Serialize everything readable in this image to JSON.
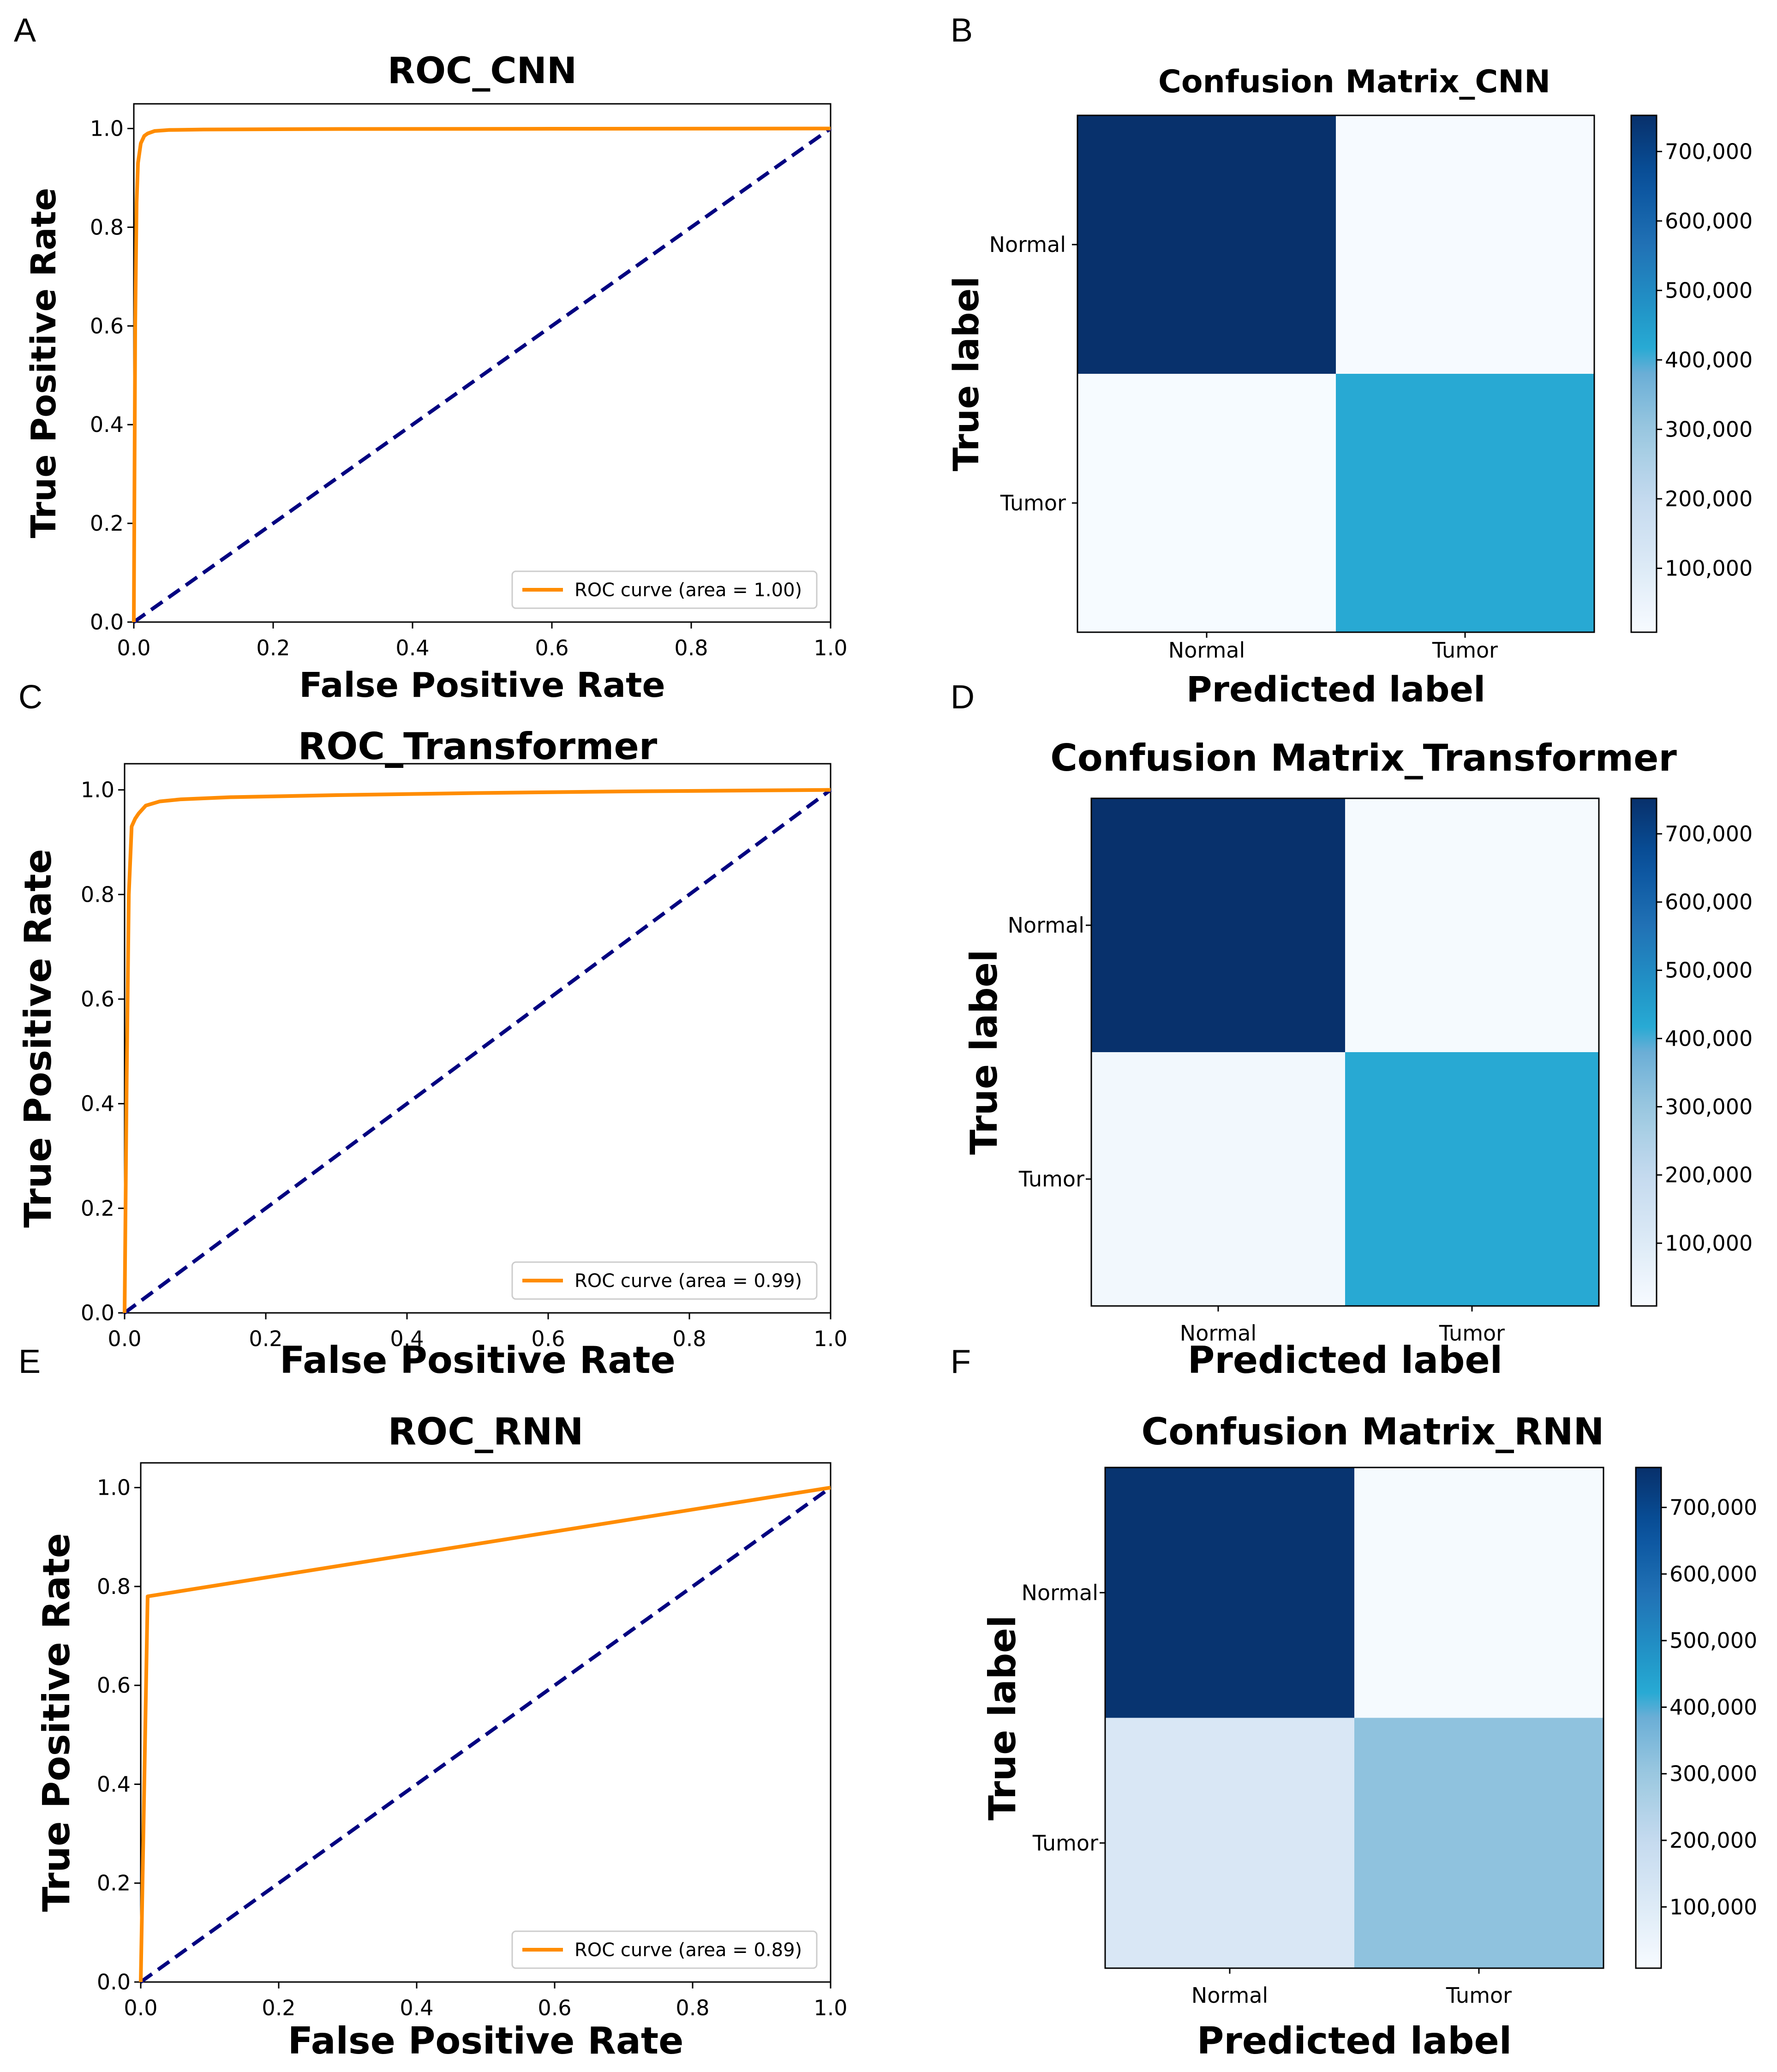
{
  "panels": [
    {
      "letter": "A"
    },
    {
      "letter": "B"
    },
    {
      "letter": "C"
    },
    {
      "letter": "D"
    },
    {
      "letter": "E"
    },
    {
      "letter": "F"
    }
  ],
  "colors": {
    "roc_curve": "#ff8c00",
    "diagonal": "#000080",
    "cmap_low": "#f7fbff",
    "cmap_high": "#08306b"
  },
  "chart_data": [
    {
      "type": "line",
      "title": "ROC_CNN",
      "xlabel": "False Positive Rate",
      "ylabel": "True Positive Rate",
      "xlim": [
        0.0,
        1.0
      ],
      "ylim": [
        0.0,
        1.05
      ],
      "xticks": [
        "0.0",
        "0.2",
        "0.4",
        "0.6",
        "0.8",
        "1.0"
      ],
      "yticks": [
        "0.0",
        "0.2",
        "0.4",
        "0.6",
        "0.8",
        "1.0"
      ],
      "legend": "ROC curve (area = 1.00)",
      "legend_loc": "lower-right",
      "series": [
        {
          "name": "ROC curve (area = 1.00)",
          "x": [
            0.0,
            0.002,
            0.004,
            0.006,
            0.01,
            0.015,
            0.02,
            0.03,
            0.05,
            0.1,
            0.3,
            0.6,
            1.0
          ],
          "y": [
            0.0,
            0.6,
            0.85,
            0.93,
            0.97,
            0.985,
            0.99,
            0.995,
            0.997,
            0.998,
            0.999,
            0.9995,
            1.0
          ]
        },
        {
          "name": "chance",
          "x": [
            0.0,
            1.0
          ],
          "y": [
            0.0,
            1.0
          ]
        }
      ]
    },
    {
      "type": "heatmap",
      "title": "Confusion Matrix_CNN",
      "xlabel": "Predicted label",
      "ylabel": "True label",
      "row_labels": [
        "Normal",
        "Tumor"
      ],
      "col_labels": [
        "Normal",
        "Tumor"
      ],
      "values": [
        [
          750000,
          12000
        ],
        [
          10000,
          420000
        ]
      ],
      "colorbar_ticks": [
        "100,000",
        "200,000",
        "300,000",
        "400,000",
        "500,000",
        "600,000",
        "700,000"
      ],
      "colorbar_values": [
        100000,
        200000,
        300000,
        400000,
        500000,
        600000,
        700000
      ],
      "vmin": 8000,
      "vmax": 752000
    },
    {
      "type": "line",
      "title": "ROC_Transformer",
      "xlabel": "False Positive Rate",
      "ylabel": "True Positive Rate",
      "xlim": [
        0.0,
        1.0
      ],
      "ylim": [
        0.0,
        1.05
      ],
      "xticks": [
        "0.0",
        "0.2",
        "0.4",
        "0.6",
        "0.8",
        "1.0"
      ],
      "yticks": [
        "0.0",
        "0.2",
        "0.4",
        "0.6",
        "0.8",
        "1.0"
      ],
      "legend": "ROC curve (area = 0.99)",
      "legend_loc": "lower-right",
      "series": [
        {
          "name": "ROC curve (area = 0.99)",
          "x": [
            0.0,
            0.003,
            0.006,
            0.01,
            0.015,
            0.02,
            0.03,
            0.05,
            0.08,
            0.15,
            0.3,
            0.5,
            0.7,
            1.0
          ],
          "y": [
            0.0,
            0.45,
            0.8,
            0.93,
            0.945,
            0.955,
            0.97,
            0.978,
            0.982,
            0.986,
            0.99,
            0.994,
            0.997,
            1.0
          ]
        },
        {
          "name": "chance",
          "x": [
            0.0,
            1.0
          ],
          "y": [
            0.0,
            1.0
          ]
        }
      ]
    },
    {
      "type": "heatmap",
      "title": "Confusion Matrix_Transformer",
      "xlabel": "Predicted label",
      "ylabel": "True label",
      "row_labels": [
        "Normal",
        "Tumor"
      ],
      "col_labels": [
        "Normal",
        "Tumor"
      ],
      "values": [
        [
          750000,
          15000
        ],
        [
          25000,
          420000
        ]
      ],
      "colorbar_ticks": [
        "100,000",
        "200,000",
        "300,000",
        "400,000",
        "500,000",
        "600,000",
        "700,000"
      ],
      "colorbar_values": [
        100000,
        200000,
        300000,
        400000,
        500000,
        600000,
        700000
      ],
      "vmin": 8000,
      "vmax": 752000
    },
    {
      "type": "line",
      "title": "ROC_RNN",
      "xlabel": "False Positive Rate",
      "ylabel": "True Positive Rate",
      "xlim": [
        0.0,
        1.0
      ],
      "ylim": [
        0.0,
        1.05
      ],
      "xticks": [
        "0.0",
        "0.2",
        "0.4",
        "0.6",
        "0.8",
        "1.0"
      ],
      "yticks": [
        "0.0",
        "0.2",
        "0.4",
        "0.6",
        "0.8",
        "1.0"
      ],
      "legend": "ROC curve (area = 0.89)",
      "legend_loc": "lower-right",
      "series": [
        {
          "name": "ROC curve (area = 0.89)",
          "x": [
            0.0,
            0.01,
            1.0
          ],
          "y": [
            0.0,
            0.78,
            1.0
          ]
        },
        {
          "name": "chance",
          "x": [
            0.0,
            1.0
          ],
          "y": [
            0.0,
            1.0
          ]
        }
      ]
    },
    {
      "type": "heatmap",
      "title": "Confusion Matrix_RNN",
      "xlabel": "Predicted label",
      "ylabel": "True label",
      "row_labels": [
        "Normal",
        "Tumor"
      ],
      "col_labels": [
        "Normal",
        "Tumor"
      ],
      "values": [
        [
          750000,
          15000
        ],
        [
          120000,
          320000
        ]
      ],
      "colorbar_ticks": [
        "100,000",
        "200,000",
        "300,000",
        "400,000",
        "500,000",
        "600,000",
        "700,000"
      ],
      "colorbar_values": [
        100000,
        200000,
        300000,
        400000,
        500000,
        600000,
        700000
      ],
      "vmin": 8000,
      "vmax": 760000
    }
  ]
}
